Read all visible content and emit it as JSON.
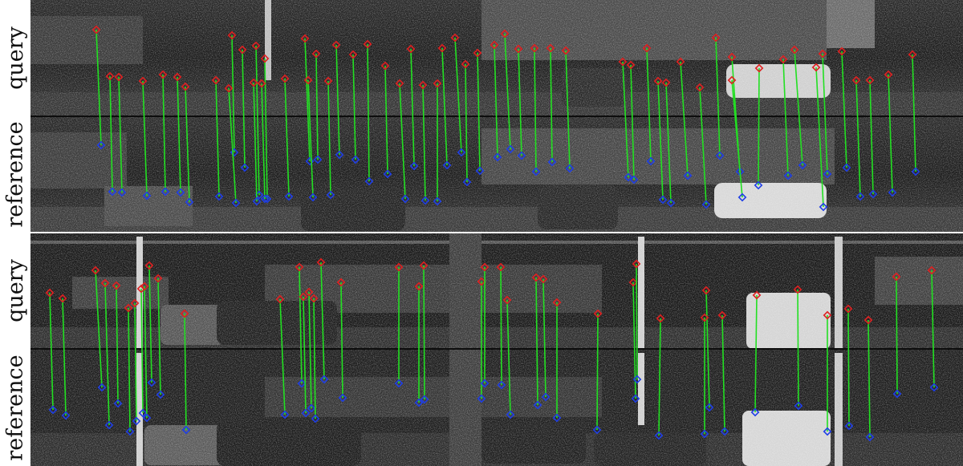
{
  "panels": [
    {
      "id": "top",
      "labels": {
        "query": "query",
        "reference": "reference"
      },
      "matches": [
        [
          120,
          37,
          126,
          181
        ],
        [
          137,
          95,
          140,
          239
        ],
        [
          148,
          96,
          152,
          240
        ],
        [
          178,
          101,
          183,
          244
        ],
        [
          203,
          93,
          206,
          239
        ],
        [
          221,
          96,
          225,
          240
        ],
        [
          231,
          108,
          236,
          252
        ],
        [
          269,
          100,
          273,
          245
        ],
        [
          289,
          44,
          292,
          190
        ],
        [
          285,
          110,
          294,
          253
        ],
        [
          302,
          62,
          305,
          209
        ],
        [
          319,
          57,
          323,
          243
        ],
        [
          316,
          103,
          320,
          251
        ],
        [
          330,
          73,
          333,
          248
        ],
        [
          326,
          104,
          330,
          248
        ],
        [
          355,
          98,
          360,
          245
        ],
        [
          380,
          48,
          386,
          201
        ],
        [
          384,
          100,
          390,
          246
        ],
        [
          394,
          67,
          396,
          199
        ],
        [
          409,
          101,
          412,
          243
        ],
        [
          419,
          56,
          423,
          193
        ],
        [
          440,
          68,
          443,
          199
        ],
        [
          458,
          55,
          460,
          226
        ],
        [
          480,
          82,
          483,
          217
        ],
        [
          498,
          104,
          505,
          248
        ],
        [
          512,
          61,
          516,
          207
        ],
        [
          527,
          106,
          530,
          250
        ],
        [
          545,
          104,
          545,
          251
        ],
        [
          551,
          60,
          557,
          206
        ],
        [
          567,
          47,
          575,
          190
        ],
        [
          580,
          80,
          582,
          227
        ],
        [
          595,
          66,
          598,
          213
        ],
        [
          616,
          56,
          620,
          196
        ],
        [
          629,
          42,
          636,
          186
        ],
        [
          646,
          61,
          650,
          194
        ],
        [
          666,
          60,
          668,
          214
        ],
        [
          686,
          60,
          688,
          202
        ],
        [
          705,
          63,
          710,
          210
        ],
        [
          776,
          77,
          783,
          221
        ],
        [
          786,
          81,
          790,
          224
        ],
        [
          806,
          60,
          811,
          201
        ],
        [
          820,
          101,
          826,
          249
        ],
        [
          830,
          103,
          836,
          253
        ],
        [
          848,
          77,
          857,
          219
        ],
        [
          872,
          109,
          880,
          255
        ],
        [
          892,
          47,
          897,
          194
        ],
        [
          912,
          71,
          922,
          214
        ],
        [
          912,
          100,
          925,
          246
        ],
        [
          946,
          85,
          945,
          231
        ],
        [
          976,
          74,
          982,
          219
        ],
        [
          990,
          62,
          1000,
          206
        ],
        [
          1017,
          84,
          1026,
          258
        ],
        [
          1025,
          67,
          1031,
          217
        ],
        [
          1049,
          64,
          1055,
          209
        ],
        [
          1067,
          100,
          1072,
          245
        ],
        [
          1084,
          100,
          1088,
          242
        ],
        [
          1107,
          93,
          1112,
          240
        ],
        [
          1137,
          68,
          1141,
          214
        ]
      ]
    },
    {
      "id": "bottom",
      "labels": {
        "query": "query",
        "reference": "reference"
      },
      "matches": [
        [
          62,
          365,
          66,
          511
        ],
        [
          78,
          372,
          82,
          518
        ],
        [
          119,
          337,
          127,
          483
        ],
        [
          131,
          353,
          136,
          530
        ],
        [
          145,
          356,
          147,
          503
        ],
        [
          160,
          384,
          162,
          538
        ],
        [
          168,
          378,
          170,
          525
        ],
        [
          176,
          360,
          178,
          515
        ],
        [
          180,
          357,
          183,
          521
        ],
        [
          186,
          331,
          189,
          477
        ],
        [
          197,
          347,
          200,
          492
        ],
        [
          230,
          391,
          232,
          536
        ],
        [
          349,
          373,
          355,
          517
        ],
        [
          373,
          333,
          376,
          478
        ],
        [
          378,
          370,
          381,
          515
        ],
        [
          385,
          364,
          388,
          509
        ],
        [
          391,
          372,
          393,
          522
        ],
        [
          400,
          327,
          404,
          473
        ],
        [
          425,
          352,
          427,
          496
        ],
        [
          497,
          333,
          497,
          478
        ],
        [
          522,
          357,
          522,
          502
        ],
        [
          528,
          331,
          529,
          498
        ],
        [
          600,
          351,
          600,
          497
        ],
        [
          604,
          333,
          604,
          478
        ],
        [
          624,
          333,
          625,
          480
        ],
        [
          632,
          374,
          636,
          517
        ],
        [
          668,
          346,
          670,
          505
        ],
        [
          677,
          348,
          680,
          495
        ],
        [
          694,
          377,
          694,
          521
        ],
        [
          745,
          391,
          744,
          536
        ],
        [
          789,
          352,
          792,
          497
        ],
        [
          793,
          329,
          794,
          473
        ],
        [
          823,
          397,
          821,
          543
        ],
        [
          880,
          362,
          884,
          508
        ],
        [
          878,
          396,
          878,
          541
        ],
        [
          900,
          393,
          903,
          538
        ],
        [
          943,
          368,
          941,
          514
        ],
        [
          994,
          361,
          995,
          506
        ],
        [
          1031,
          393,
          1031,
          538
        ],
        [
          1057,
          385,
          1058,
          531
        ],
        [
          1082,
          399,
          1084,
          545
        ],
        [
          1117,
          345,
          1118,
          491
        ],
        [
          1161,
          337,
          1164,
          483
        ]
      ]
    }
  ],
  "colors": {
    "match_line": "#22e022",
    "query_point": "#e02020",
    "reference_point": "#1f3fe6",
    "label_text": "#111111"
  }
}
